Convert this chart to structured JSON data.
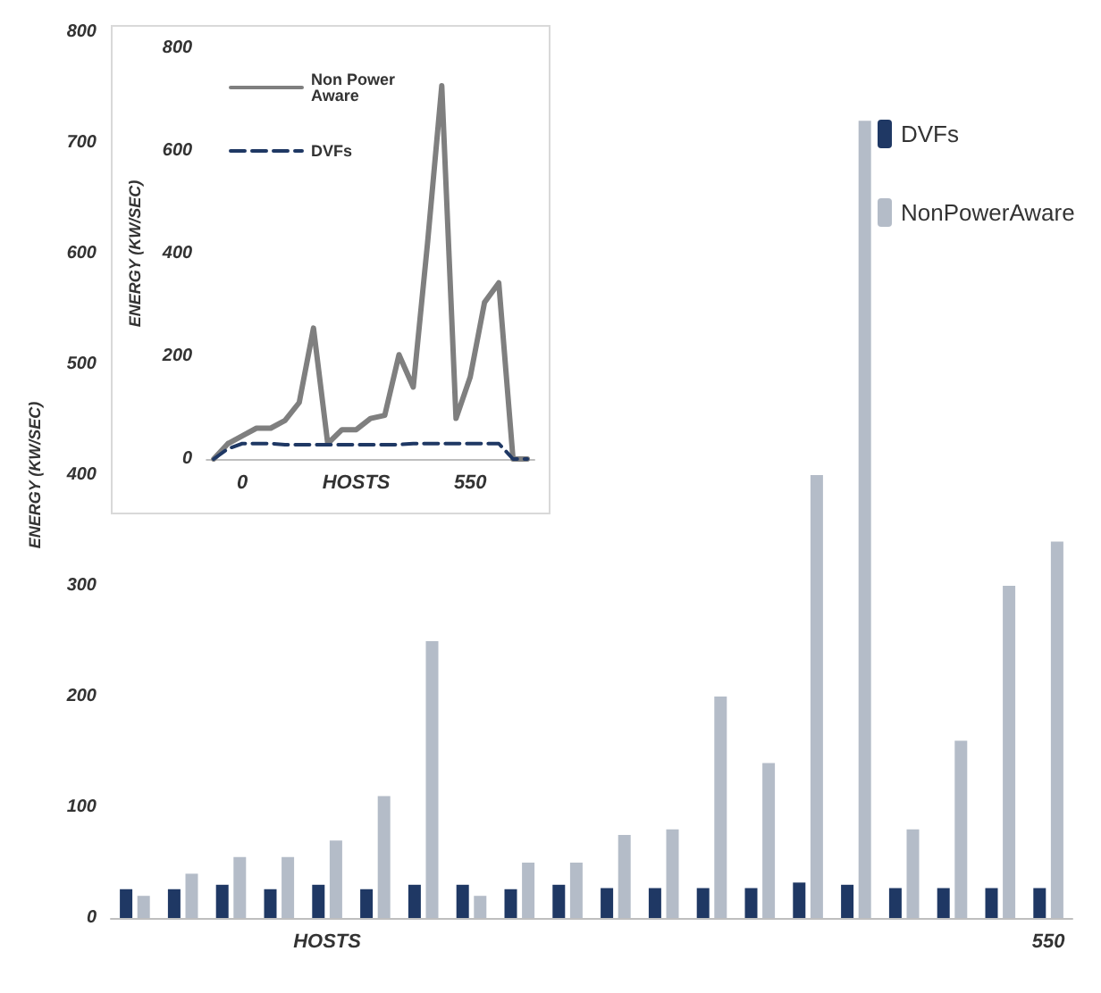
{
  "chart_data": [
    {
      "type": "bar",
      "ylabel": "ENERGY (KW/SEC)",
      "categories": [
        null,
        null,
        null,
        null,
        "HOSTS",
        null,
        null,
        null,
        null,
        null,
        null,
        null,
        null,
        null,
        null,
        null,
        null,
        null,
        null,
        "550"
      ],
      "ylim": [
        0,
        800
      ],
      "yticks": [
        0,
        100,
        200,
        300,
        400,
        500,
        600,
        700,
        800
      ],
      "legend": "right",
      "series": [
        {
          "name": "DVFs",
          "color": "#1f3864",
          "values": [
            26,
            26,
            30,
            26,
            30,
            26,
            30,
            30,
            26,
            30,
            27,
            27,
            27,
            27,
            32,
            30,
            27,
            27,
            27,
            27
          ]
        },
        {
          "name": "NonPowerAware",
          "color": "#b4bcc8",
          "values": [
            20,
            40,
            55,
            55,
            70,
            110,
            250,
            20,
            50,
            50,
            75,
            80,
            200,
            140,
            400,
            720,
            80,
            160,
            300,
            340
          ]
        }
      ]
    },
    {
      "type": "line",
      "ylabel": "ENERGY (KW/SEC)",
      "categories": [
        null,
        null,
        "0",
        null,
        null,
        null,
        null,
        null,
        null,
        null,
        "HOSTS",
        null,
        null,
        null,
        null,
        null,
        null,
        null,
        "550",
        null,
        null,
        null,
        null
      ],
      "ylim": [
        0,
        800
      ],
      "yticks": [
        0,
        200,
        400,
        600,
        800
      ],
      "legend": "top left",
      "marker": "none",
      "series": [
        {
          "name": "Non Power Aware",
          "color": "#7f7f7f",
          "line_style": "solid",
          "values": [
            0,
            30,
            45,
            60,
            60,
            75,
            110,
            255,
            30,
            57,
            57,
            79,
            85,
            203,
            140,
            420,
            727,
            79,
            160,
            305,
            343,
            0,
            0
          ]
        },
        {
          "name": "DVFs",
          "color": "#1f3864",
          "line_style": "dashed",
          "values": [
            0,
            20,
            30,
            30,
            30,
            28,
            28,
            28,
            28,
            28,
            28,
            28,
            28,
            28,
            30,
            30,
            30,
            30,
            30,
            30,
            30,
            0,
            0
          ]
        }
      ]
    }
  ]
}
